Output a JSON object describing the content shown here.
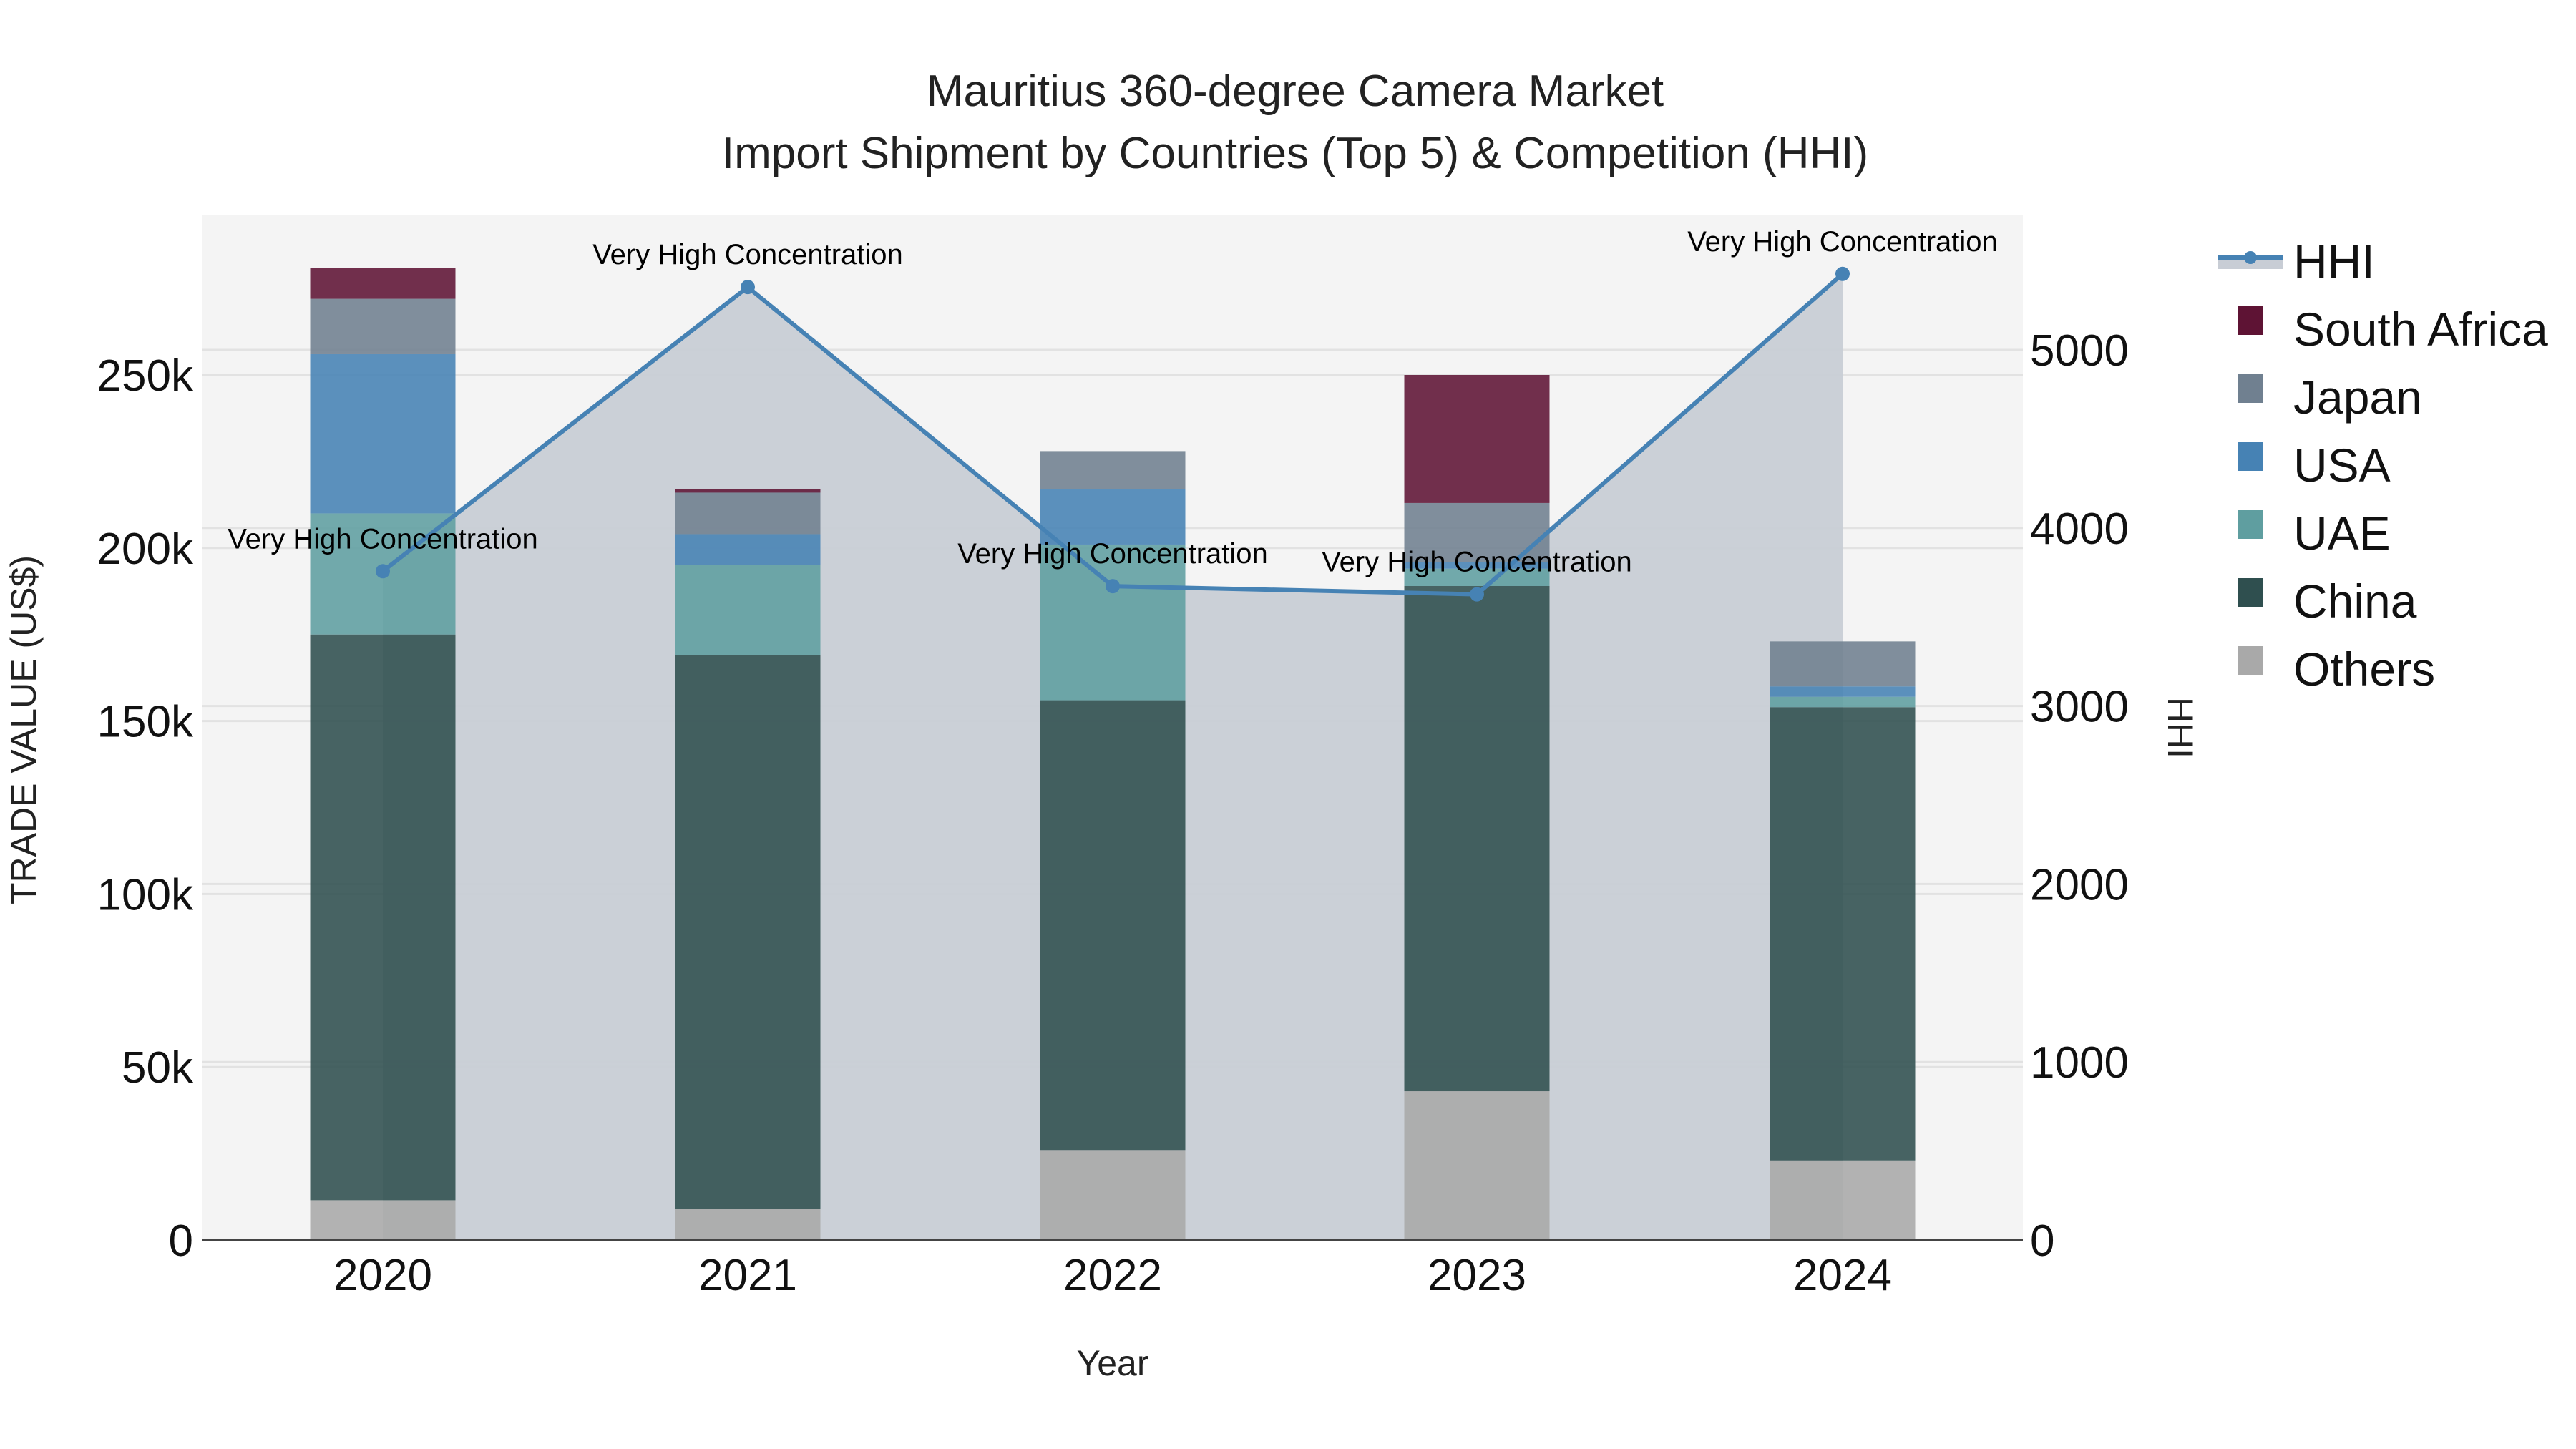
{
  "title": {
    "line1": "Mauritius 360-degree Camera Market",
    "line2": "Import Shipment by Countries (Top 5) & Competition (HHI)"
  },
  "axes": {
    "x_title": "Year",
    "y_left_title": "TRADE VALUE (US$)",
    "y_right_title": "HHI",
    "y_left_ticks": [
      "0",
      "50k",
      "100k",
      "150k",
      "200k",
      "250k"
    ],
    "y_right_ticks": [
      "0",
      "1000",
      "2000",
      "3000",
      "4000",
      "5000"
    ]
  },
  "legend": {
    "items": [
      {
        "label": "HHI",
        "color": "#4682B4",
        "kind": "line"
      },
      {
        "label": "South Africa",
        "color": "#5E1334",
        "kind": "bar"
      },
      {
        "label": "Japan",
        "color": "#708090",
        "kind": "bar"
      },
      {
        "label": "USA",
        "color": "#4682B4",
        "kind": "bar"
      },
      {
        "label": "UAE",
        "color": "#5F9EA0",
        "kind": "bar"
      },
      {
        "label": "China",
        "color": "#2F4F4F",
        "kind": "bar"
      },
      {
        "label": "Others",
        "color": "#A9A9A9",
        "kind": "bar"
      }
    ]
  },
  "annotations": [
    "Very High Concentration",
    "Very High Concentration",
    "Very High Concentration",
    "Very High Concentration",
    "Very High Concentration"
  ],
  "chart_data": {
    "type": "bar",
    "title": "Mauritius 360-degree Camera Market — Import Shipment by Countries (Top 5) & Competition (HHI)",
    "xlabel": "Year",
    "ylabel": "TRADE VALUE (US$)",
    "y2label": "HHI",
    "ylim": [
      0,
      295000
    ],
    "y2lim": [
      0,
      5700
    ],
    "barmode": "stack",
    "categories": [
      "2020",
      "2021",
      "2022",
      "2023",
      "2024"
    ],
    "series": [
      {
        "name": "Others",
        "color": "#A9A9A9",
        "values": [
          11500,
          9000,
          26000,
          43000,
          23000
        ]
      },
      {
        "name": "China",
        "color": "#2F4F4F",
        "values": [
          163500,
          160000,
          130000,
          146000,
          131000
        ]
      },
      {
        "name": "UAE",
        "color": "#5F9EA0",
        "values": [
          35000,
          26000,
          45000,
          5000,
          3000
        ]
      },
      {
        "name": "USA",
        "color": "#4682B4",
        "values": [
          46000,
          9000,
          16000,
          2000,
          3000
        ]
      },
      {
        "name": "Japan",
        "color": "#708090",
        "values": [
          16000,
          12000,
          11000,
          17000,
          13000
        ]
      },
      {
        "name": "South Africa",
        "color": "#5E1334",
        "values": [
          9000,
          1000,
          0,
          37000,
          0
        ]
      }
    ],
    "line_series": {
      "name": "HHI",
      "axis": "right",
      "color": "#4682B4",
      "fill": "tozeroy",
      "values": [
        3757,
        5353,
        3673,
        3627,
        5427
      ],
      "labels": [
        "Very High Concentration",
        "Very High Concentration",
        "Very High Concentration",
        "Very High Concentration",
        "Very High Concentration"
      ]
    },
    "grid": true,
    "legend_position": "right"
  }
}
